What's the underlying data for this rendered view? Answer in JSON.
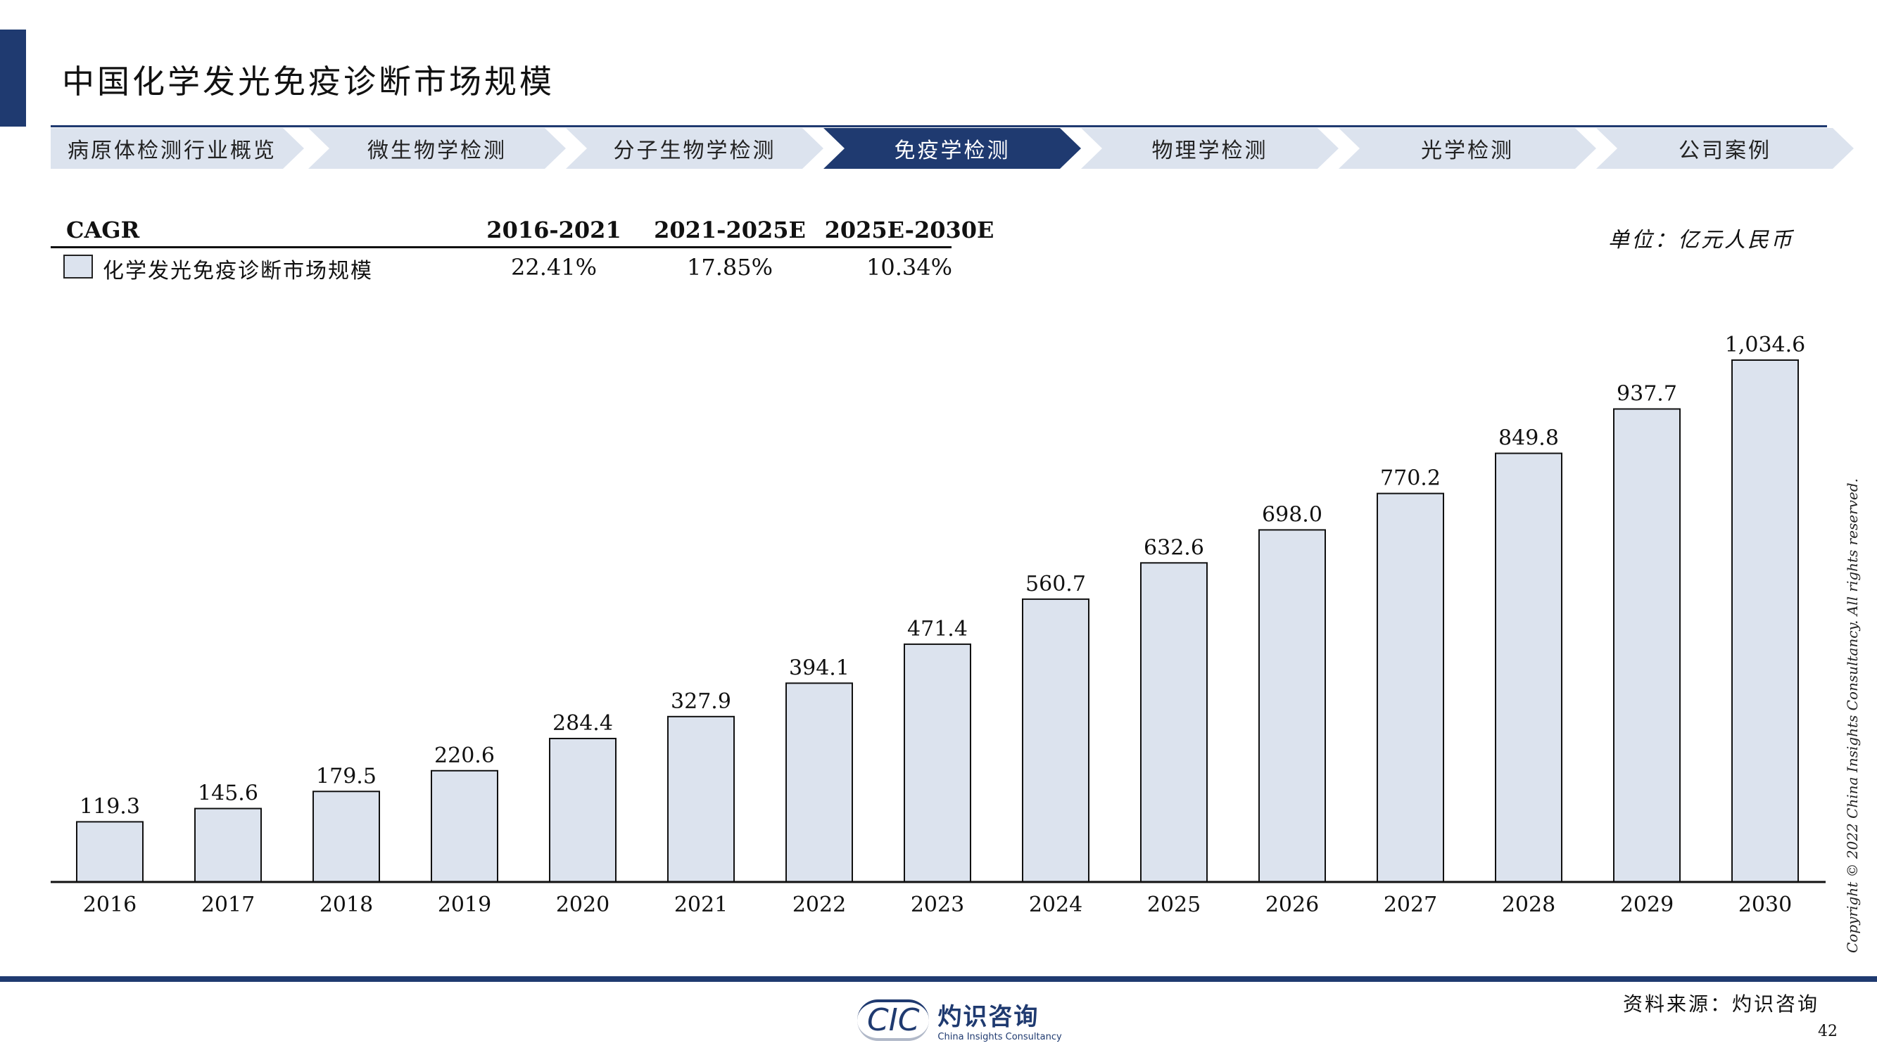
{
  "header": {
    "title": "中国化学发光免疫诊断市场规模"
  },
  "nav": {
    "items": [
      {
        "label": "病原体检测行业概览",
        "active": false
      },
      {
        "label": "微生物学检测",
        "active": false
      },
      {
        "label": "分子生物学检测",
        "active": false
      },
      {
        "label": "免疫学检测",
        "active": true
      },
      {
        "label": "物理学检测",
        "active": false
      },
      {
        "label": "光学检测",
        "active": false
      },
      {
        "label": "公司案例",
        "active": false
      }
    ]
  },
  "cagr": {
    "label": "CAGR",
    "periods": [
      "2016-2021",
      "2021-2025E",
      "2025E-2030E"
    ],
    "series_name": "化学发光免疫诊断市场规模",
    "values": [
      "22.41%",
      "17.85%",
      "10.34%"
    ]
  },
  "unit": "单位：亿元人民币",
  "chart_data": {
    "type": "bar",
    "categories": [
      "2016",
      "2017",
      "2018",
      "2019",
      "2020",
      "2021",
      "2022",
      "2023",
      "2024",
      "2025",
      "2026",
      "2027",
      "2028",
      "2029",
      "2030"
    ],
    "values": [
      119.3,
      145.6,
      179.5,
      220.6,
      284.4,
      327.9,
      394.1,
      471.4,
      560.7,
      632.6,
      698.0,
      770.2,
      849.8,
      937.7,
      1034.6
    ],
    "labels": [
      "119.3",
      "145.6",
      "179.5",
      "220.6",
      "284.4",
      "327.9",
      "394.1",
      "471.4",
      "560.7",
      "632.6",
      "698.0",
      "770.2",
      "849.8",
      "937.7",
      "1,034.6"
    ],
    "bar_color": "#dce3ee",
    "edge_color": "#111111",
    "ylim": [
      0,
      1034.6
    ]
  },
  "copyright": "Copyright © 2022 China Insights Consultancy. All rights reserved.",
  "footer": {
    "logo_mark": "CIC",
    "logo_cn": "灼识咨询",
    "logo_en": "China Insights Consultancy",
    "source": "资料来源：灼识咨询",
    "page_number": "42"
  }
}
